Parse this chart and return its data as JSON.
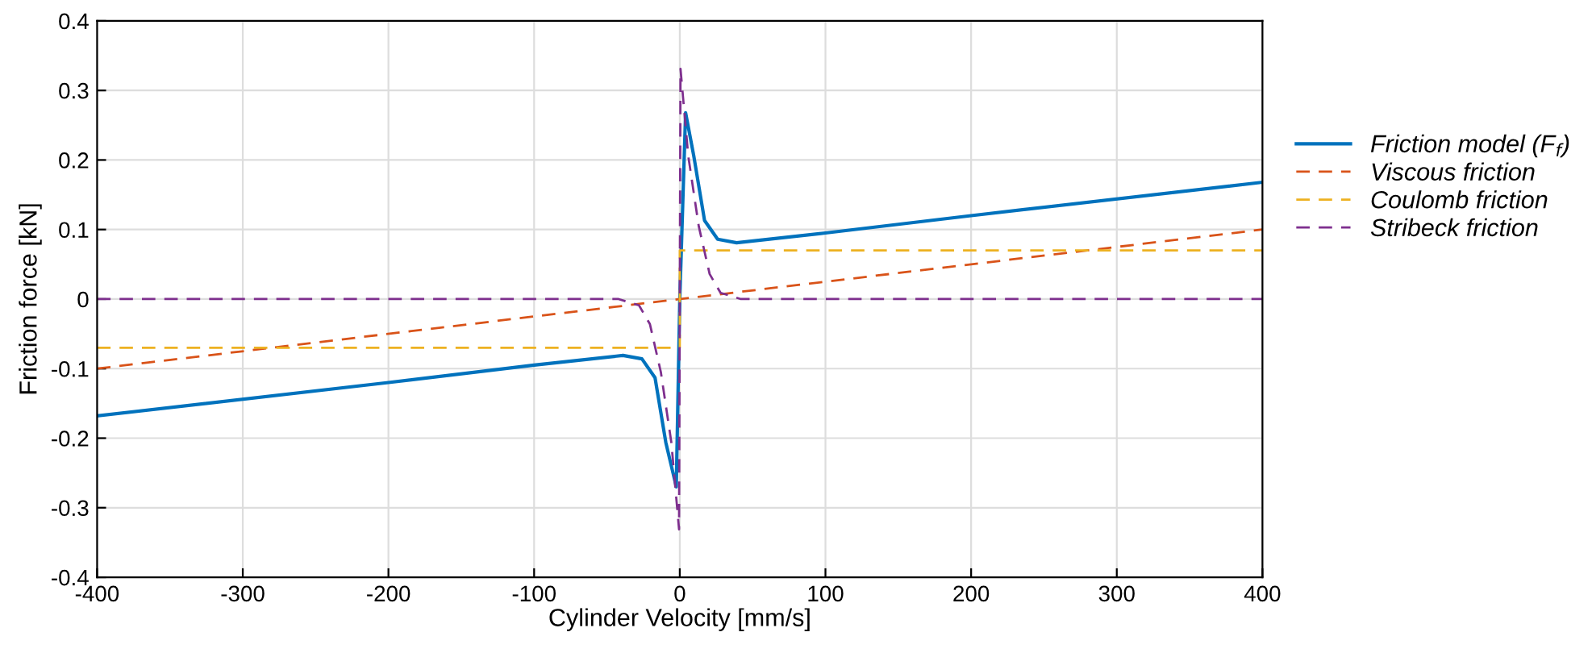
{
  "chart_data": {
    "type": "line",
    "xlabel": "Cylinder Velocity [mm/s]",
    "ylabel": "Friction force [kN]",
    "xlim": [
      -400,
      400
    ],
    "xticks": [
      -400,
      -300,
      -200,
      -100,
      0,
      100,
      200,
      300,
      400
    ],
    "ylim": [
      -0.4,
      0.4
    ],
    "yticks": [
      -0.4,
      -0.3,
      -0.2,
      -0.1,
      0,
      0.1,
      0.2,
      0.3,
      0.4
    ],
    "grid": true,
    "legend": "right",
    "series": [
      {
        "name": "Friction model (F$_{f}$)",
        "color": "#0072bd",
        "line_style": "solid",
        "x": [
          -400,
          -200,
          -100,
          -39,
          -26,
          -17,
          -9.6,
          -2.4,
          0,
          4,
          9.6,
          17,
          26,
          39,
          100,
          200,
          400
        ],
        "values": [
          -0.168,
          -0.12,
          -0.095,
          -0.081,
          -0.086,
          -0.113,
          -0.206,
          -0.27,
          0,
          0.268,
          0.206,
          0.113,
          0.086,
          0.081,
          0.095,
          0.12,
          0.168
        ]
      },
      {
        "name": "Viscous friction",
        "color": "#d95319",
        "line_style": "dashed",
        "x": [
          -400,
          400
        ],
        "values": [
          -0.1,
          0.1
        ]
      },
      {
        "name": "Coulomb friction",
        "color": "#edb120",
        "line_style": "dashed",
        "x": [
          -400,
          0,
          0,
          400
        ],
        "values": [
          -0.07,
          -0.07,
          0.07,
          0.07
        ]
      },
      {
        "name": "Stribeck friction",
        "color": "#7e2f8e",
        "line_style": "dashed",
        "x": [
          -400,
          -42,
          -28,
          -20.5,
          -13,
          -5.8,
          -0.5,
          0.5,
          5.8,
          13,
          20.5,
          28,
          42,
          400
        ],
        "values": [
          0,
          0,
          -0.009,
          -0.036,
          -0.105,
          -0.206,
          -0.331,
          0.331,
          0.206,
          0.105,
          0.036,
          0.009,
          0,
          0
        ]
      }
    ]
  }
}
